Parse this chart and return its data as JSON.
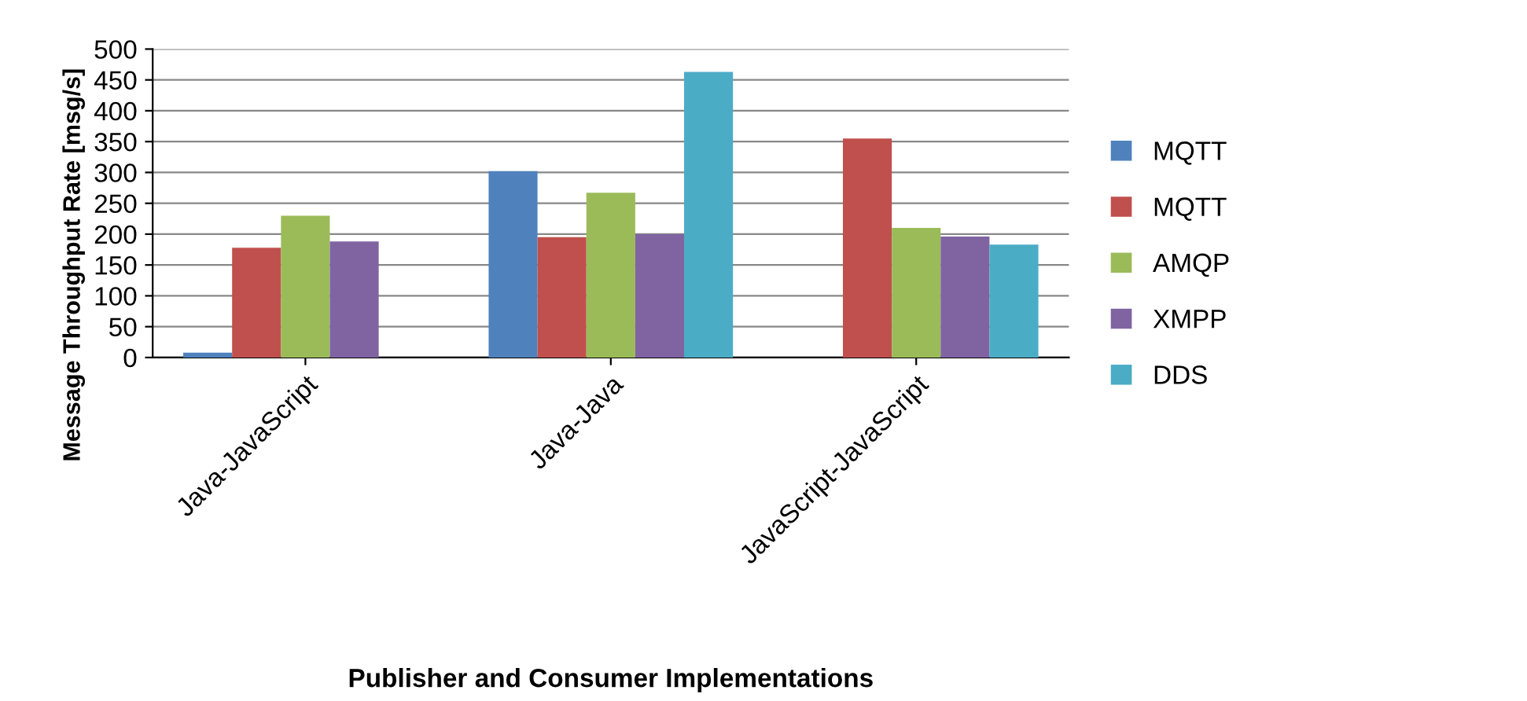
{
  "chart_data": {
    "type": "bar",
    "xlabel": "Publisher and Consumer Implementations",
    "ylabel": "Message Throughput Rate [msg/s]",
    "categories": [
      "Java-JavaScript",
      "Java-Java",
      "JavaScript-JavaScript"
    ],
    "series": [
      {
        "name": "MQTT",
        "color": "#4f81bd",
        "values": [
          8,
          302,
          null
        ]
      },
      {
        "name": "MQTT",
        "color": "#c0504d",
        "values": [
          178,
          195,
          355
        ]
      },
      {
        "name": "AMQP",
        "color": "#9bbb59",
        "values": [
          230,
          267,
          210
        ]
      },
      {
        "name": "XMPP",
        "color": "#8064a2",
        "values": [
          188,
          200,
          196
        ]
      },
      {
        "name": "DDS",
        "color": "#4bacc6",
        "values": [
          null,
          463,
          183
        ]
      }
    ],
    "ylim": [
      0,
      500
    ],
    "yticks": [
      0,
      50,
      100,
      150,
      200,
      250,
      300,
      350,
      400,
      450,
      500
    ],
    "grid": "y",
    "legend": "right"
  }
}
